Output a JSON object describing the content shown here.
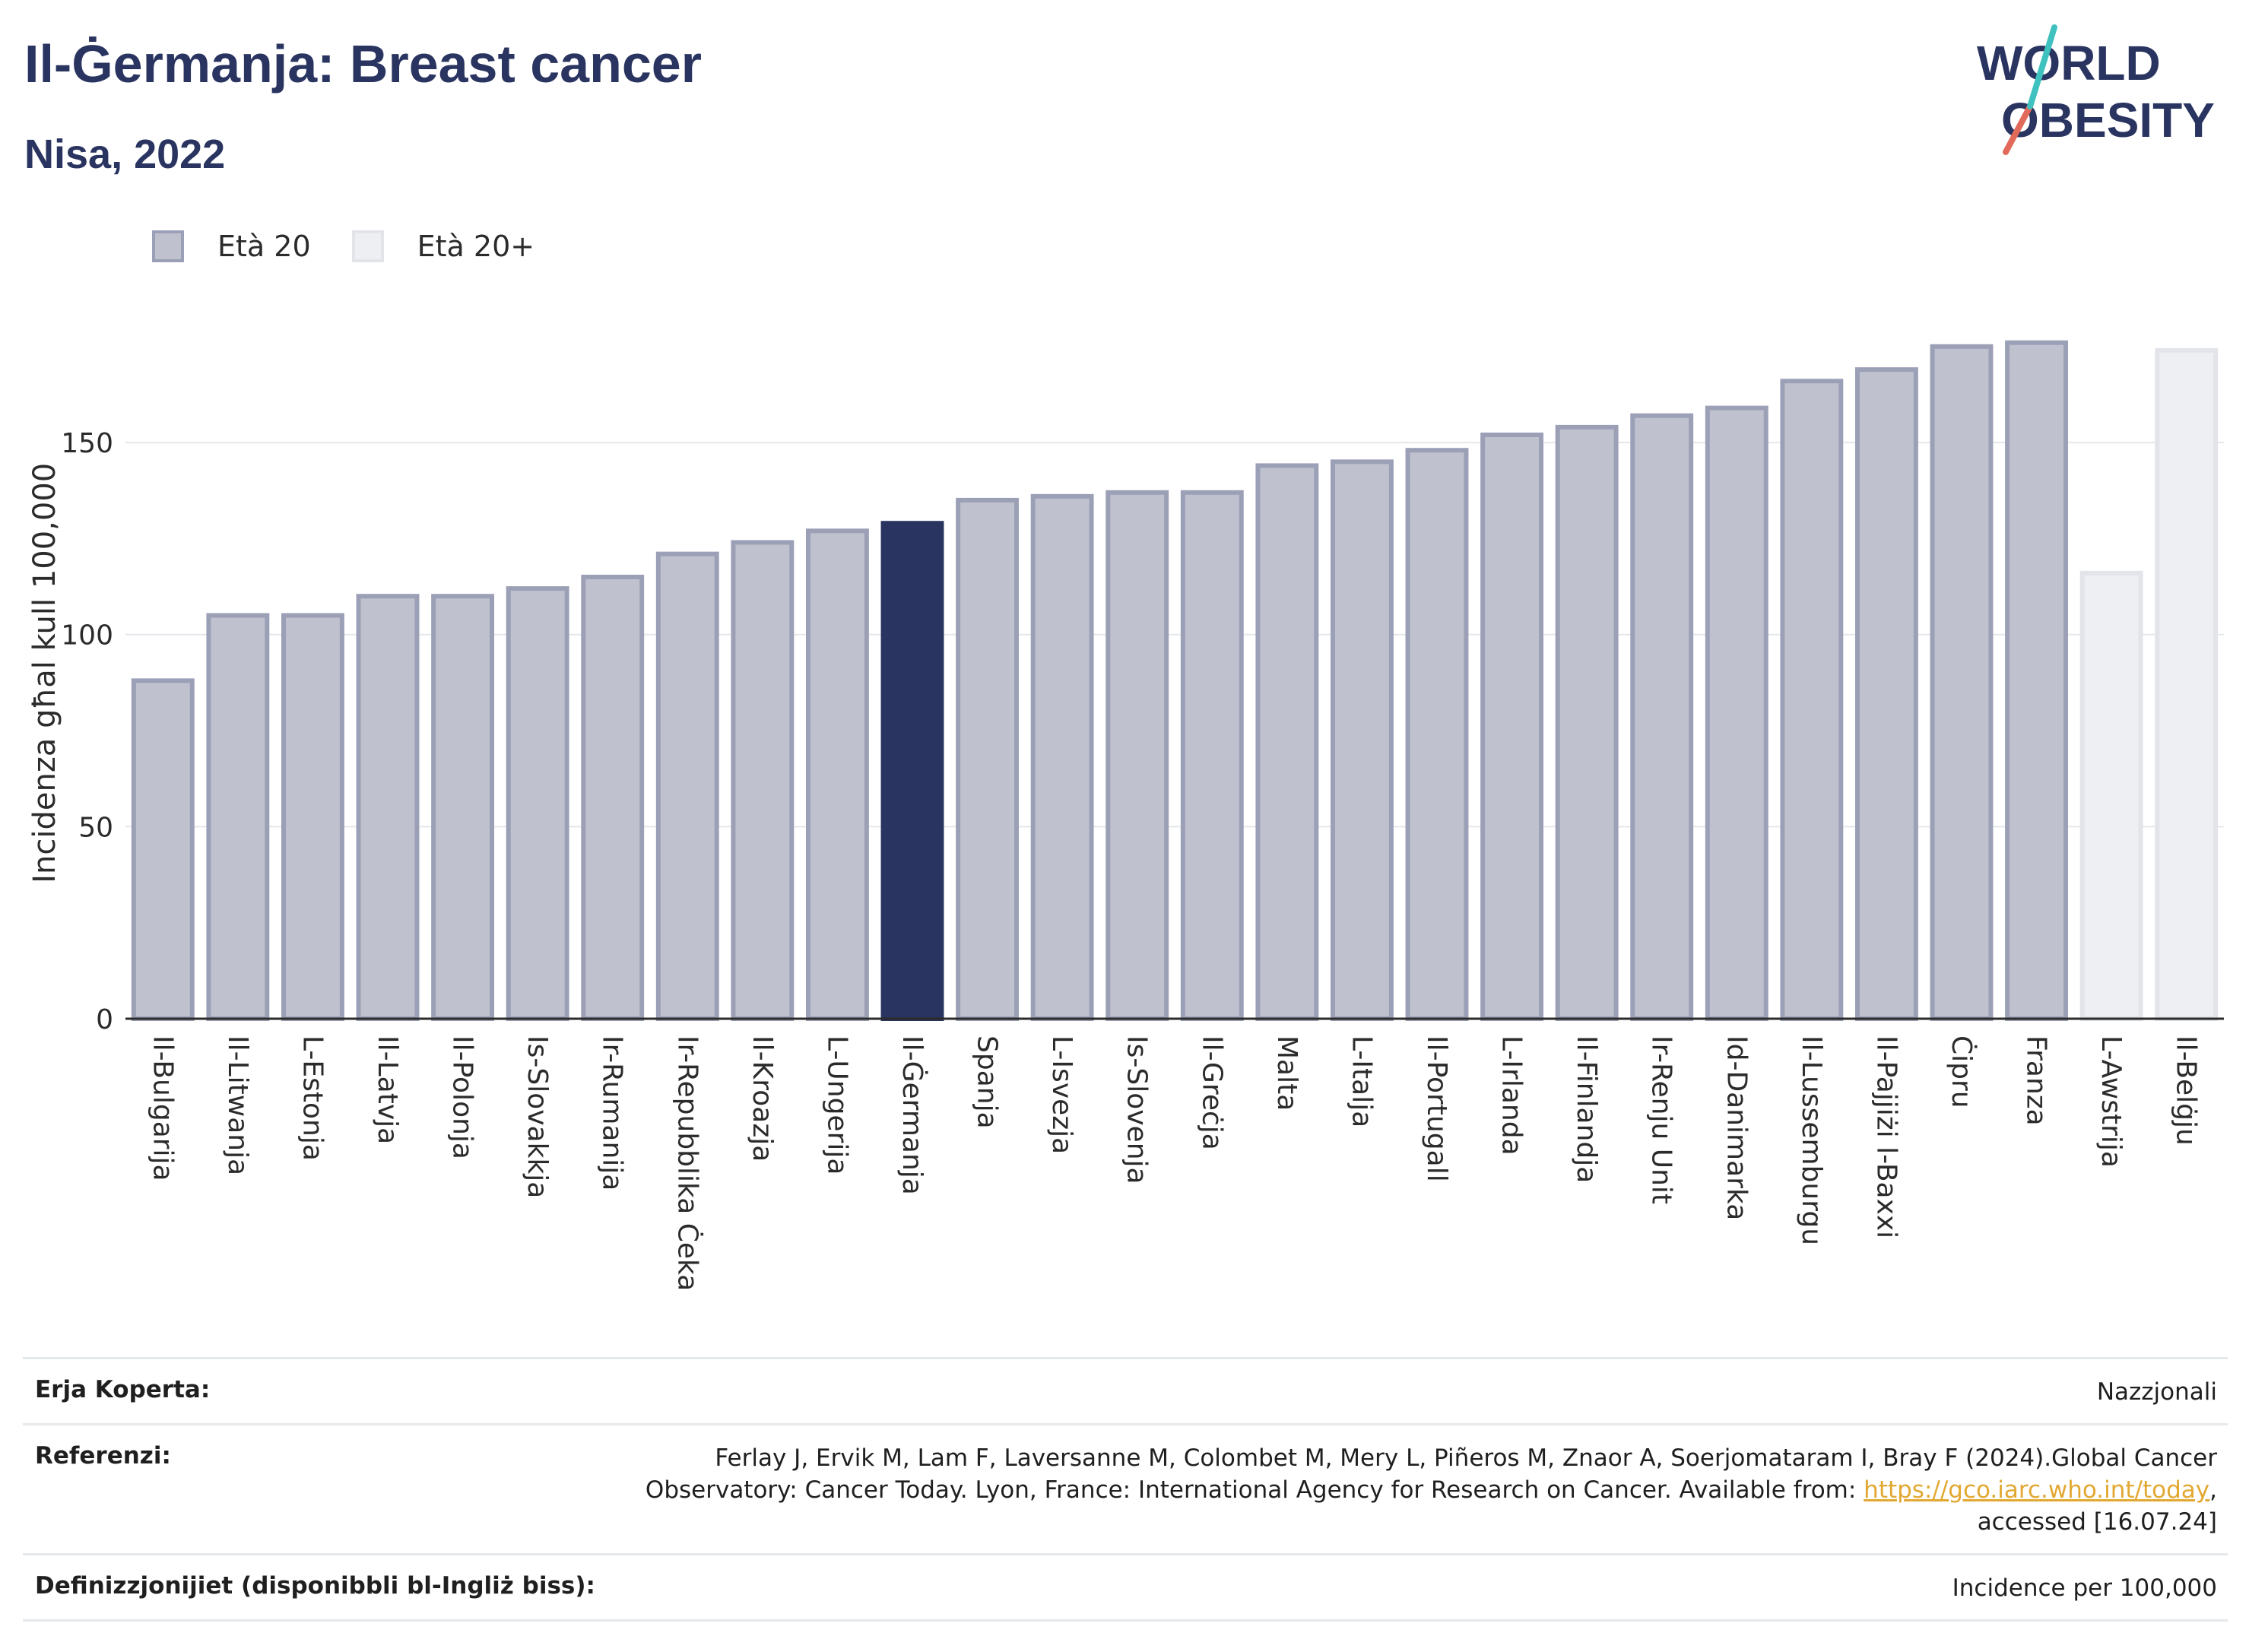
{
  "header": {
    "title": "Il-Ġermanja: Breast cancer",
    "subtitle": "Nisa, 2022"
  },
  "logo": {
    "line1": "WORLD",
    "line2": "OBESITY"
  },
  "legend": {
    "items": [
      {
        "label": "Età 20",
        "color": "#bfc2ce",
        "border": "#9ca0b6"
      },
      {
        "label": "Età 20+",
        "color": "#eeeff2",
        "border": "#e3e4e9"
      }
    ]
  },
  "chart_data": {
    "type": "bar",
    "ylabel": "Incidenza għal kull 100,000",
    "ylim": [
      0,
      190
    ],
    "yticks": [
      0,
      50,
      100,
      150
    ],
    "grid": true,
    "highlight": "Il-Ġermanja",
    "categories": [
      "Il-Bulgarija",
      "Il-Litwanja",
      "L-Estonja",
      "Il-Latvja",
      "Il-Polonja",
      "Is-Slovakkja",
      "Ir-Rumanija",
      "Ir-Repubblika Ċeka",
      "Il-Kroazja",
      "L-Ungerija",
      "Il-Ġermanja",
      "Spanja",
      "L-Isvezja",
      "Is-Slovenja",
      "Il-Greċja",
      "Malta",
      "L-Italja",
      "Il-Portugall",
      "L-Irlanda",
      "Il-Finlandja",
      "Ir-Renju Unit",
      "Id-Danimarka",
      "Il-Lussemburgu",
      "Il-Pajjiżi l-Baxxi",
      "Ċipru",
      "Franza",
      "L-Awstrija",
      "Il-Belġju"
    ],
    "series": [
      {
        "name": "Età 20",
        "values": [
          88,
          105,
          105,
          110,
          110,
          112,
          115,
          121,
          124,
          127,
          129,
          135,
          136,
          137,
          137,
          144,
          145,
          148,
          152,
          154,
          157,
          159,
          166,
          169,
          175,
          176,
          null,
          null
        ]
      },
      {
        "name": "Età 20+",
        "values": [
          null,
          null,
          null,
          null,
          null,
          null,
          null,
          null,
          null,
          null,
          null,
          null,
          null,
          null,
          null,
          null,
          null,
          null,
          null,
          null,
          null,
          null,
          null,
          null,
          null,
          null,
          116,
          174
        ]
      }
    ],
    "colors": {
      "bar": "#bfc2ce",
      "bar_border": "#9ca0b6",
      "highlight": "#2a3460",
      "bar_light": "#eeeff2",
      "bar_light_border": "#e3e4e9"
    }
  },
  "footer": {
    "coverage_label": "Erja Koperta:",
    "coverage_value": "Nazzjonali",
    "references_label": "Referenzi:",
    "references_text": "Ferlay J, Ervik M, Lam F, Laversanne M, Colombet M, Mery L, Piñeros M, Znaor A, Soerjomataram I, Bray F (2024).Global Cancer Observatory: Cancer Today. Lyon, France: International Agency for Research on Cancer. Available from: ",
    "references_link": "https://gco.iarc.who.int/today",
    "references_suffix": ", accessed [16.07.24]",
    "definitions_label": "Definizzjonijiet (disponibbli bl-Ingliż biss):",
    "definitions_value": "Incidence per 100,000"
  }
}
